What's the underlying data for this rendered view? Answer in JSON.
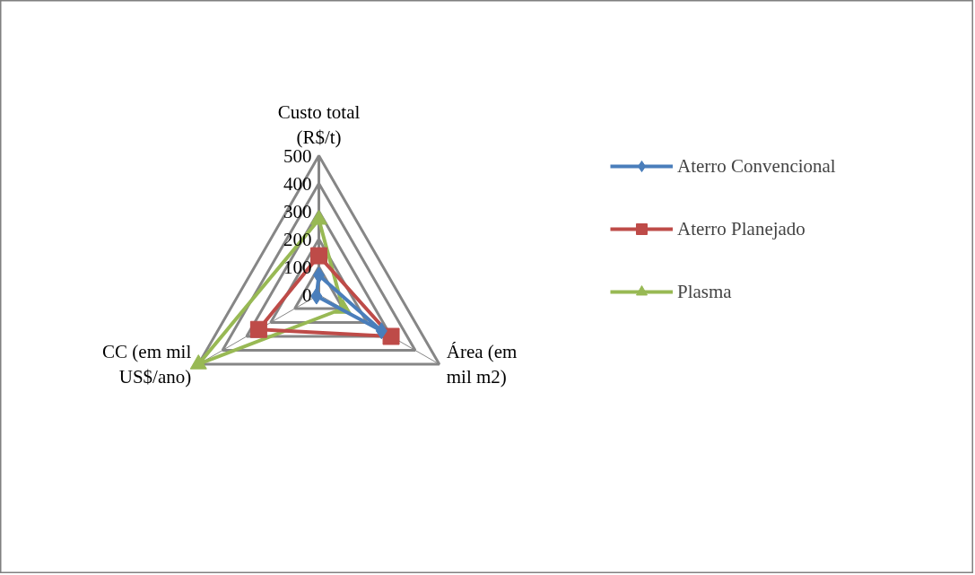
{
  "chart_data": {
    "type": "radar",
    "categories": [
      "Custo total (R$/t)",
      "Área (em mil m2)",
      "CC (em mil US$/ano)"
    ],
    "series": [
      {
        "name": "Aterro Convencional",
        "color": "#4a7ebb",
        "values": [
          70,
          260,
          10
        ]
      },
      {
        "name": "Aterro Planejado",
        "color": "#be4b48",
        "values": [
          140,
          300,
          250
        ]
      },
      {
        "name": "Plasma",
        "color": "#98b954",
        "values": [
          270,
          100,
          500
        ]
      }
    ],
    "ylim": [
      0,
      500
    ],
    "yticks": [
      0,
      100,
      200,
      300,
      400,
      500
    ],
    "legend": "right",
    "grid": true
  }
}
